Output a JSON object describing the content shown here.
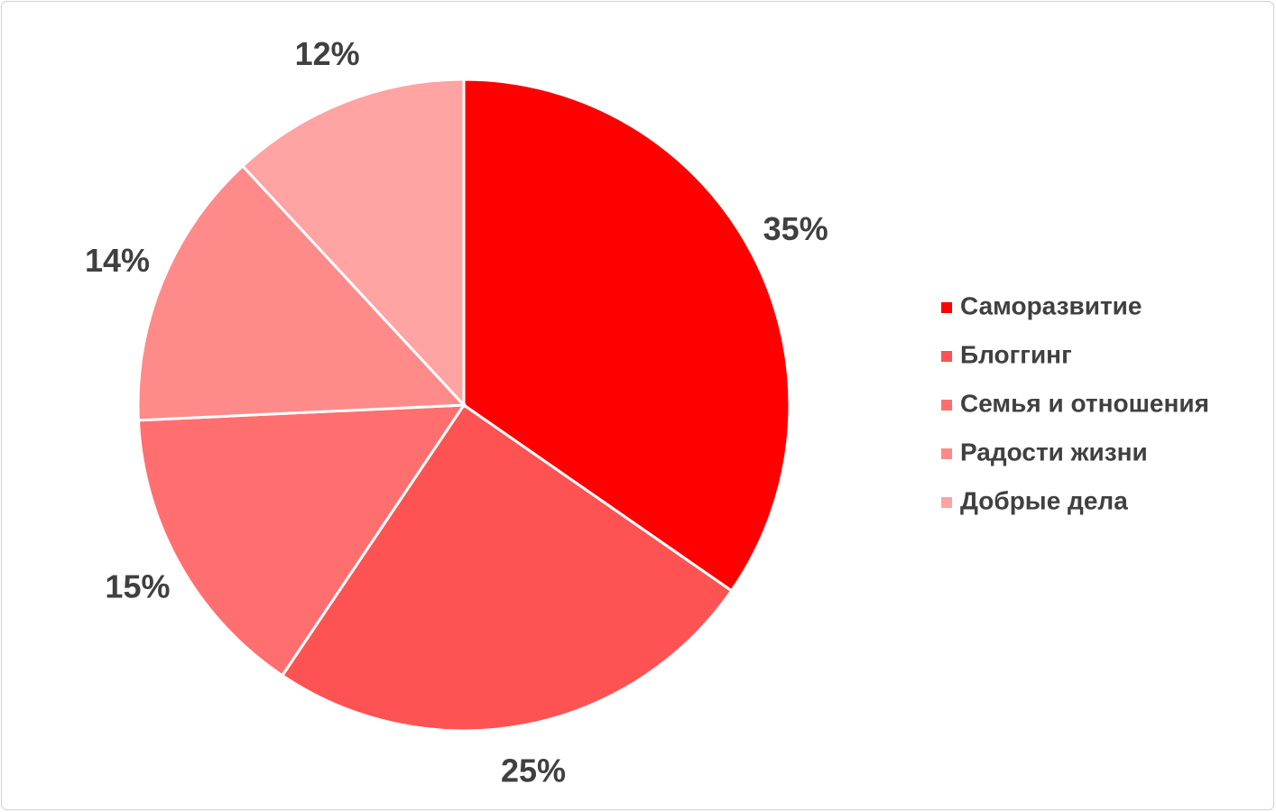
{
  "chart_data": {
    "type": "pie",
    "categories": [
      "Саморазвитие",
      "Блоггинг",
      "Семья и отношения",
      "Радости жизни",
      "Добрые дела"
    ],
    "values": [
      35,
      25,
      15,
      14,
      12
    ],
    "value_labels": [
      "35%",
      "25%",
      "15%",
      "14%",
      "12%"
    ],
    "colors": [
      "#ff0000",
      "#ff5252",
      "#ff6f6f",
      "#ff8a8a",
      "#ffa3a3"
    ],
    "legend": "right"
  }
}
